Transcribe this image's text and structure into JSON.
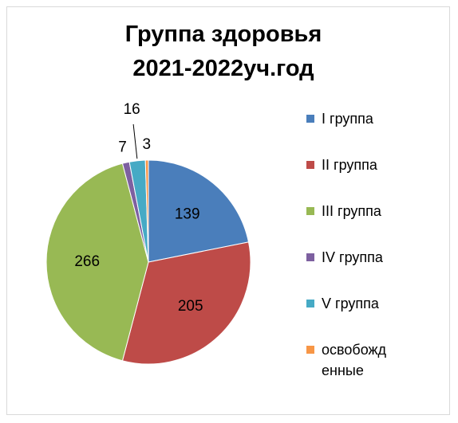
{
  "chart_data": {
    "type": "pie",
    "title": "Группа здоровья 2021-2022уч.год",
    "categories": [
      "I группа",
      "II группа",
      "III группа",
      "IV группа",
      "V группа",
      "освобожденные"
    ],
    "values": [
      139,
      205,
      266,
      7,
      16,
      3
    ],
    "colors": [
      "#4a7ebb",
      "#be4b48",
      "#98b954",
      "#7d60a0",
      "#46aac5",
      "#f79646"
    ],
    "legend": "right"
  }
}
